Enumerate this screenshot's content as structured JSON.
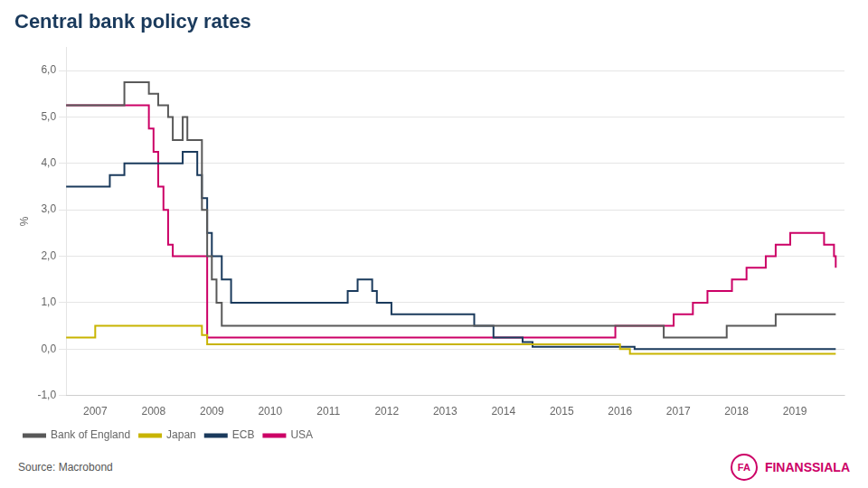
{
  "chart_data": {
    "type": "line",
    "line_style": "step",
    "title": "Central bank policy rates",
    "ylabel": "%",
    "xlim": [
      2006.5,
      2019.85
    ],
    "xticks": [
      2007,
      2008,
      2009,
      2010,
      2011,
      2012,
      2013,
      2014,
      2015,
      2016,
      2017,
      2018,
      2019
    ],
    "ylim": [
      -1.0,
      6.5
    ],
    "yticks": [
      {
        "value": -1.0,
        "label": "-1,0"
      },
      {
        "value": 0.0,
        "label": "0,0"
      },
      {
        "value": 1.0,
        "label": "1,0"
      },
      {
        "value": 2.0,
        "label": "2,0"
      },
      {
        "value": 3.0,
        "label": "3,0"
      },
      {
        "value": 4.0,
        "label": "4,0"
      },
      {
        "value": 5.0,
        "label": "5,0"
      },
      {
        "value": 6.0,
        "label": "6,0"
      }
    ],
    "grid": true,
    "legend": "bottom",
    "series": [
      {
        "name": "Bank of England",
        "color": "#595959",
        "x": [
          2006.5,
          2007.0,
          2007.17,
          2007.5,
          2007.75,
          2007.92,
          2008.0,
          2008.08,
          2008.25,
          2008.33,
          2008.5,
          2008.58,
          2008.75,
          2008.83,
          2008.92,
          2009.0,
          2009.08,
          2009.17,
          2016.5,
          2016.75,
          2017.75,
          2017.83,
          2018.5,
          2018.67,
          2019.7
        ],
        "values": [
          5.25,
          5.25,
          5.25,
          5.75,
          5.75,
          5.5,
          5.5,
          5.25,
          5.0,
          4.5,
          5.0,
          4.5,
          4.5,
          3.0,
          2.0,
          1.5,
          1.0,
          0.5,
          0.5,
          0.25,
          0.25,
          0.5,
          0.5,
          0.75,
          0.75
        ]
      },
      {
        "name": "Japan",
        "color": "#c8b400",
        "x": [
          2006.5,
          2007.0,
          2008.83,
          2008.92,
          2010.0,
          2013.0,
          2016.0,
          2016.17,
          2019.7
        ],
        "values": [
          0.25,
          0.5,
          0.3,
          0.1,
          0.1,
          0.1,
          0.0,
          -0.1,
          -0.1
        ]
      },
      {
        "name": "ECB",
        "color": "#1a3a5c",
        "x": [
          2006.5,
          2007.0,
          2007.25,
          2007.5,
          2007.67,
          2008.5,
          2008.67,
          2008.75,
          2008.83,
          2008.92,
          2009.0,
          2009.17,
          2009.33,
          2009.5,
          2011.17,
          2011.33,
          2011.5,
          2011.75,
          2011.83,
          2012.08,
          2012.5,
          2013.5,
          2013.83,
          2014.33,
          2014.5,
          2015.0,
          2016.25,
          2019.7
        ],
        "values": [
          3.5,
          3.5,
          3.75,
          4.0,
          4.0,
          4.25,
          4.25,
          3.75,
          3.25,
          2.5,
          2.0,
          1.5,
          1.0,
          1.0,
          1.0,
          1.25,
          1.5,
          1.25,
          1.0,
          0.75,
          0.75,
          0.5,
          0.25,
          0.15,
          0.05,
          0.05,
          0.0,
          0.0
        ]
      },
      {
        "name": "USA",
        "color": "#cc0066",
        "x": [
          2006.5,
          2007.83,
          2007.92,
          2008.0,
          2008.08,
          2008.17,
          2008.25,
          2008.33,
          2008.92,
          2008.92,
          2015.92,
          2015.92,
          2016.92,
          2016.92,
          2017.25,
          2017.5,
          2017.92,
          2018.17,
          2018.5,
          2018.67,
          2018.92,
          2019.33,
          2019.5,
          2019.67,
          2019.7
        ],
        "values": [
          5.25,
          5.25,
          4.75,
          4.25,
          3.5,
          3.0,
          2.25,
          2.0,
          1.0,
          0.25,
          0.25,
          0.5,
          0.5,
          0.75,
          1.0,
          1.25,
          1.5,
          1.75,
          2.0,
          2.25,
          2.5,
          2.5,
          2.25,
          2.0,
          1.75
        ]
      }
    ],
    "annotations": [
      {
        "text": "Source: Macrobond"
      },
      {
        "text": "FA",
        "color": "#cc0066"
      },
      {
        "text": "FINANSSIALA",
        "color": "#cc0066"
      }
    ]
  }
}
